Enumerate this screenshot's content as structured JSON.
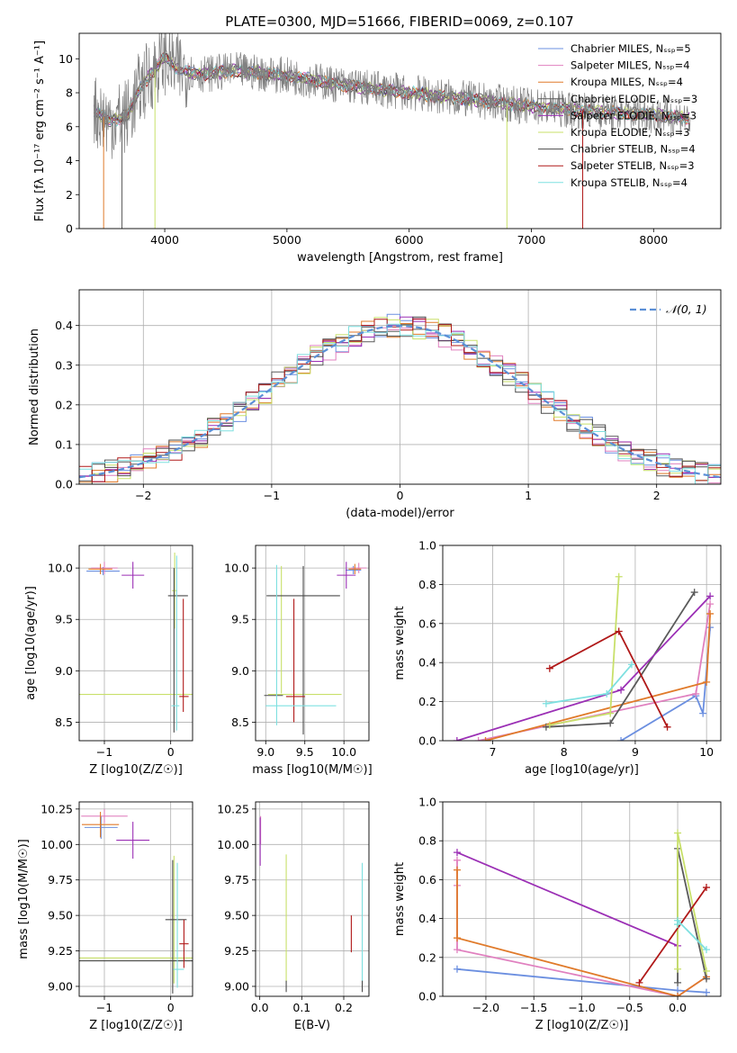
{
  "figure": {
    "title": "PLATE=0300, MJD=51666, FIBERID=0069, z=0.107"
  },
  "colors": {
    "Chabrier MILES": "#6b8fe0",
    "Salpeter MILES": "#e080bf",
    "Kroupa MILES": "#e07a2a",
    "Chabrier ELODIE": "#5a5a5a",
    "Salpeter ELODIE": "#9b2fb5",
    "Kroupa ELODIE": "#c8e06a",
    "Chabrier STELIB": "#4a4a4a",
    "Salpeter STELIB": "#b01818",
    "Kroupa STELIB": "#7ee0e0",
    "normal": "#5b8fd6",
    "data": "#808080"
  },
  "chart_data": [
    {
      "id": "spectrum",
      "type": "line",
      "xlabel": "wavelength [Angstrom, rest frame]",
      "ylabel": "Flux [fλ 10⁻¹⁷ erg cm⁻² s⁻¹ A⁻¹]",
      "xlim": [
        3300,
        8550
      ],
      "ylim": [
        0,
        11.5
      ],
      "xticks": [
        4000,
        5000,
        6000,
        7000,
        8000
      ],
      "yticks": [
        0,
        2,
        4,
        6,
        8,
        10
      ],
      "grid": false,
      "legend_position": "top-right",
      "legend": [
        "Chabrier MILES, N_SSP=5",
        "Salpeter MILES, N_SSP=4",
        "Kroupa MILES, N_SSP=4",
        "Chabrier ELODIE, N_SSP=3",
        "Salpeter ELODIE, N_SSP=3",
        "Kroupa ELODIE, N_SSP=3",
        "Chabrier STELIB, N_SSP=4",
        "Salpeter STELIB, N_SSP=3",
        "Kroupa STELIB, N_SSP=4"
      ],
      "continuum": [
        [
          3420,
          7.0
        ],
        [
          3550,
          6.3
        ],
        [
          3700,
          6.7
        ],
        [
          3800,
          8.3
        ],
        [
          4000,
          10.1
        ],
        [
          4100,
          9.4
        ],
        [
          4300,
          9.1
        ],
        [
          4600,
          9.3
        ],
        [
          5000,
          9.0
        ],
        [
          5400,
          8.5
        ],
        [
          6000,
          8.0
        ],
        [
          6500,
          7.6
        ],
        [
          7000,
          7.2
        ],
        [
          7500,
          6.9
        ],
        [
          8000,
          6.7
        ],
        [
          8300,
          6.5
        ]
      ]
    },
    {
      "id": "residuals",
      "type": "line",
      "xlabel": "(data-model)/error",
      "ylabel": "Normed distribution",
      "xlim": [
        -2.5,
        2.5
      ],
      "ylim": [
        0,
        0.49
      ],
      "xticks": [
        -2,
        -1,
        0,
        1,
        2
      ],
      "yticks": [
        0.0,
        0.1,
        0.2,
        0.3,
        0.4
      ],
      "grid": true,
      "legend_position": "top-right",
      "legend": [
        "𝒩(0, 1)"
      ]
    },
    {
      "id": "age-vs-Z",
      "type": "scatter",
      "xlabel": "Z [log10(Z/Z☉)]",
      "ylabel": "age  [log10(age/yr)]",
      "xlim": [
        -1.38,
        0.33
      ],
      "ylim": [
        8.32,
        10.22
      ],
      "xticks": [
        -1,
        0
      ],
      "yticks": [
        8.5,
        9.0,
        9.5,
        10.0
      ],
      "grid": true,
      "points": [
        {
          "c": "Chabrier MILES",
          "x": -1.02,
          "y": 9.97,
          "xe": 0.25,
          "ye": 0.04
        },
        {
          "c": "Salpeter MILES",
          "x": -1.0,
          "y": 10.0,
          "xe": 0.2,
          "ye": 0.06
        },
        {
          "c": "Kroupa MILES",
          "x": -1.06,
          "y": 9.99,
          "xe": 0.18,
          "ye": 0.05
        },
        {
          "c": "Salpeter ELODIE",
          "x": -0.57,
          "y": 9.93,
          "xe": 0.17,
          "ye": 0.13
        },
        {
          "c": "Kroupa ELODIE",
          "x": 0.06,
          "y": 9.78,
          "xe": 0.04,
          "ye": 0.37
        },
        {
          "c": "Kroupa ELODIE",
          "x": -0.5,
          "y": 8.77,
          "xe": 1.1,
          "ye": 0.0
        },
        {
          "c": "Chabrier STELIB",
          "x": 0.11,
          "y": 9.73,
          "xe": 0.15,
          "ye": 0.0
        },
        {
          "c": "Chabrier STELIB",
          "x": 0.05,
          "y": 9.2,
          "xe": 0.0,
          "ye": 0.8
        },
        {
          "c": "Salpeter STELIB",
          "x": 0.2,
          "y": 8.75,
          "xe": 0.07,
          "ye": 0.0
        },
        {
          "c": "Salpeter STELIB",
          "x": 0.19,
          "y": 9.15,
          "xe": 0.0,
          "ye": 0.55
        },
        {
          "c": "Kroupa STELIB",
          "x": 0.09,
          "y": 9.27,
          "xe": 0.0,
          "ye": 0.85
        },
        {
          "c": "Kroupa STELIB",
          "x": 0.07,
          "y": 8.66,
          "xe": 0.06,
          "ye": 0.0
        }
      ]
    },
    {
      "id": "age-vs-mass",
      "type": "scatter",
      "xlabel": "mass [log10(M/M☉)]",
      "ylabel": "",
      "xlim": [
        8.87,
        10.32
      ],
      "ylim": [
        8.32,
        10.22
      ],
      "xticks": [
        9.0,
        9.5,
        10.0
      ],
      "yticks": [
        8.5,
        9.0,
        9.5,
        10.0
      ],
      "grid": true,
      "points": [
        {
          "c": "Chabrier MILES",
          "x": 10.12,
          "y": 9.98,
          "xe": 0.1,
          "ye": 0.04
        },
        {
          "c": "Salpeter MILES",
          "x": 10.19,
          "y": 10.0,
          "xe": 0.1,
          "ye": 0.05
        },
        {
          "c": "Kroupa MILES",
          "x": 10.14,
          "y": 9.99,
          "xe": 0.08,
          "ye": 0.05
        },
        {
          "c": "Salpeter ELODIE",
          "x": 10.03,
          "y": 9.93,
          "xe": 0.12,
          "ye": 0.13
        },
        {
          "c": "Kroupa ELODIE",
          "x": 9.2,
          "y": 9.4,
          "xe": 0.0,
          "ye": 0.62
        },
        {
          "c": "Kroupa ELODIE",
          "x": 9.5,
          "y": 8.77,
          "xe": 0.47,
          "ye": 0.0
        },
        {
          "c": "Chabrier STELIB",
          "x": 9.48,
          "y": 9.73,
          "xe": 0.47,
          "ye": 0.0
        },
        {
          "c": "Chabrier STELIB",
          "x": 9.48,
          "y": 9.2,
          "xe": 0.0,
          "ye": 0.82
        },
        {
          "c": "Chabrier STELIB",
          "x": 9.1,
          "y": 8.76,
          "xe": 0.12,
          "ye": 0.0
        },
        {
          "c": "Salpeter STELIB",
          "x": 9.38,
          "y": 8.75,
          "xe": 0.12,
          "ye": 0.0
        },
        {
          "c": "Salpeter STELIB",
          "x": 9.36,
          "y": 9.1,
          "xe": 0.0,
          "ye": 0.6
        },
        {
          "c": "Kroupa STELIB",
          "x": 9.14,
          "y": 9.25,
          "xe": 0.0,
          "ye": 0.78
        },
        {
          "c": "Kroupa STELIB",
          "x": 9.45,
          "y": 8.66,
          "xe": 0.45,
          "ye": 0.0
        }
      ]
    },
    {
      "id": "mw-vs-age",
      "type": "line",
      "xlabel": "age  [log10(age/yr)]",
      "ylabel": "mass weight",
      "xlim": [
        6.3,
        10.2
      ],
      "ylim": [
        0,
        1.0
      ],
      "xticks": [
        7,
        8,
        9,
        10
      ],
      "yticks": [
        0.0,
        0.2,
        0.4,
        0.6,
        0.8,
        1.0
      ],
      "grid": true,
      "series": [
        {
          "c": "Chabrier MILES",
          "x": [
            8.8,
            9.85,
            9.95,
            10.05
          ],
          "y": [
            0.0,
            0.23,
            0.14,
            0.58
          ]
        },
        {
          "c": "Salpeter MILES",
          "x": [
            6.8,
            9.85,
            10.05
          ],
          "y": [
            0.0,
            0.24,
            0.7
          ]
        },
        {
          "c": "Kroupa MILES",
          "x": [
            6.9,
            10.0,
            10.05
          ],
          "y": [
            0.0,
            0.3,
            0.65
          ]
        },
        {
          "c": "Chabrier ELODIE",
          "x": [
            7.75,
            8.65,
            9.83
          ],
          "y": [
            0.07,
            0.09,
            0.76
          ]
        },
        {
          "c": "Salpeter ELODIE",
          "x": [
            6.5,
            8.8,
            10.05
          ],
          "y": [
            0.0,
            0.26,
            0.74
          ]
        },
        {
          "c": "Kroupa ELODIE",
          "x": [
            7.8,
            8.65,
            8.77
          ],
          "y": [
            0.08,
            0.14,
            0.84
          ]
        },
        {
          "c": "Salpeter STELIB",
          "x": [
            7.8,
            8.77,
            9.45
          ],
          "y": [
            0.37,
            0.56,
            0.07
          ]
        },
        {
          "c": "Kroupa STELIB",
          "x": [
            7.75,
            8.6,
            8.95
          ],
          "y": [
            0.19,
            0.24,
            0.39
          ]
        }
      ]
    },
    {
      "id": "mass-vs-Z",
      "type": "scatter",
      "xlabel": "Z [log10(Z/Z☉)]",
      "ylabel": "mass [log10(M/M☉)]",
      "xlim": [
        -1.38,
        0.33
      ],
      "ylim": [
        8.93,
        10.3
      ],
      "xticks": [
        -1,
        0
      ],
      "yticks": [
        9.0,
        9.25,
        9.5,
        9.75,
        10.0,
        10.25
      ],
      "grid": true,
      "points": [
        {
          "c": "Chabrier MILES",
          "x": -1.05,
          "y": 10.12,
          "xe": 0.25,
          "ye": 0.08
        },
        {
          "c": "Salpeter MILES",
          "x": -1.0,
          "y": 10.2,
          "xe": 0.35,
          "ye": 0.05
        },
        {
          "c": "Kroupa MILES",
          "x": -1.06,
          "y": 10.14,
          "xe": 0.28,
          "ye": 0.09
        },
        {
          "c": "Salpeter ELODIE",
          "x": -0.57,
          "y": 10.03,
          "xe": 0.25,
          "ye": 0.13
        },
        {
          "c": "Kroupa ELODIE",
          "x": 0.05,
          "y": 9.47,
          "xe": 0.0,
          "ye": 0.45
        },
        {
          "c": "Kroupa ELODIE",
          "x": -0.5,
          "y": 9.2,
          "xe": 1.1,
          "ye": 0.0
        },
        {
          "c": "Chabrier STELIB",
          "x": 0.08,
          "y": 9.47,
          "xe": 0.16,
          "ye": 0.0
        },
        {
          "c": "Chabrier STELIB",
          "x": 0.03,
          "y": 9.42,
          "xe": 0.0,
          "ye": 0.47
        },
        {
          "c": "Chabrier STELIB",
          "x": -0.55,
          "y": 9.18,
          "xe": 1.05,
          "ye": 0.0
        },
        {
          "c": "Salpeter STELIB",
          "x": 0.2,
          "y": 9.3,
          "xe": 0.07,
          "ye": 0.17
        },
        {
          "c": "Kroupa STELIB",
          "x": 0.1,
          "y": 9.43,
          "xe": 0.0,
          "ye": 0.44
        },
        {
          "c": "Kroupa STELIB",
          "x": 0.12,
          "y": 9.12,
          "xe": 0.08,
          "ye": 0.0
        }
      ]
    },
    {
      "id": "mass-vs-EBV",
      "type": "scatter",
      "xlabel": "E(B-V)",
      "ylabel": "",
      "xlim": [
        -0.01,
        0.26
      ],
      "ylim": [
        8.93,
        10.3
      ],
      "xticks": [
        0.0,
        0.1,
        0.2
      ],
      "yticks": [
        9.0,
        9.25,
        9.5,
        9.75,
        10.0,
        10.25
      ],
      "grid": true,
      "points": [
        {
          "c": "Salpeter MILES",
          "x": 0.002,
          "y": 10.1,
          "xe": 0.0,
          "ye": 0.1
        },
        {
          "c": "Salpeter ELODIE",
          "x": 0.001,
          "y": 10.02,
          "xe": 0.0,
          "ye": 0.17
        },
        {
          "c": "Kroupa ELODIE",
          "x": 0.063,
          "y": 9.48,
          "xe": 0.0,
          "ye": 0.45
        },
        {
          "c": "Chabrier STELIB",
          "x": 0.063,
          "y": 9.0,
          "xe": 0.0,
          "ye": 0.04
        },
        {
          "c": "Salpeter STELIB",
          "x": 0.218,
          "y": 9.37,
          "xe": 0.0,
          "ye": 0.13
        },
        {
          "c": "Kroupa STELIB",
          "x": 0.244,
          "y": 9.45,
          "xe": 0.0,
          "ye": 0.42
        },
        {
          "c": "Chabrier STELIB",
          "x": 0.244,
          "y": 9.0,
          "xe": 0.0,
          "ye": 0.04
        }
      ]
    },
    {
      "id": "mw-vs-Z",
      "type": "line",
      "xlabel": "Z [log10(Z/Z☉)]",
      "ylabel": "mass weight",
      "xlim": [
        -2.45,
        0.45
      ],
      "ylim": [
        0,
        1.0
      ],
      "xticks": [
        -2.0,
        -1.5,
        -1.0,
        -0.5,
        0.0
      ],
      "yticks": [
        0.0,
        0.2,
        0.4,
        0.6,
        0.8,
        1.0
      ],
      "grid": true,
      "series": [
        {
          "c": "Chabrier MILES",
          "x": [
            -2.3,
            0.0,
            0.3
          ],
          "y": [
            0.14,
            0.03,
            0.02
          ]
        },
        {
          "c": "Salpeter MILES",
          "x": [
            -2.3,
            -2.3,
            -2.3,
            0.0,
            0.3
          ],
          "y": [
            0.7,
            0.57,
            0.24,
            0.0,
            0.1
          ]
        },
        {
          "c": "Kroupa MILES",
          "x": [
            -2.3,
            -2.3,
            0.0,
            0.3
          ],
          "y": [
            0.65,
            0.3,
            0.0,
            0.1
          ]
        },
        {
          "c": "Chabrier ELODIE",
          "x": [
            0.0,
            0.0,
            0.3
          ],
          "y": [
            0.07,
            0.76,
            0.09
          ]
        },
        {
          "c": "Salpeter ELODIE",
          "x": [
            -2.3,
            0.0
          ],
          "y": [
            0.74,
            0.26
          ]
        },
        {
          "c": "Kroupa ELODIE",
          "x": [
            0.0,
            0.0,
            0.3
          ],
          "y": [
            0.14,
            0.84,
            0.13
          ]
        },
        {
          "c": "Salpeter STELIB",
          "x": [
            -0.4,
            0.3
          ],
          "y": [
            0.07,
            0.56
          ]
        },
        {
          "c": "Kroupa STELIB",
          "x": [
            0.0,
            0.0,
            0.3
          ],
          "y": [
            0.37,
            0.39,
            0.24
          ]
        }
      ]
    }
  ]
}
